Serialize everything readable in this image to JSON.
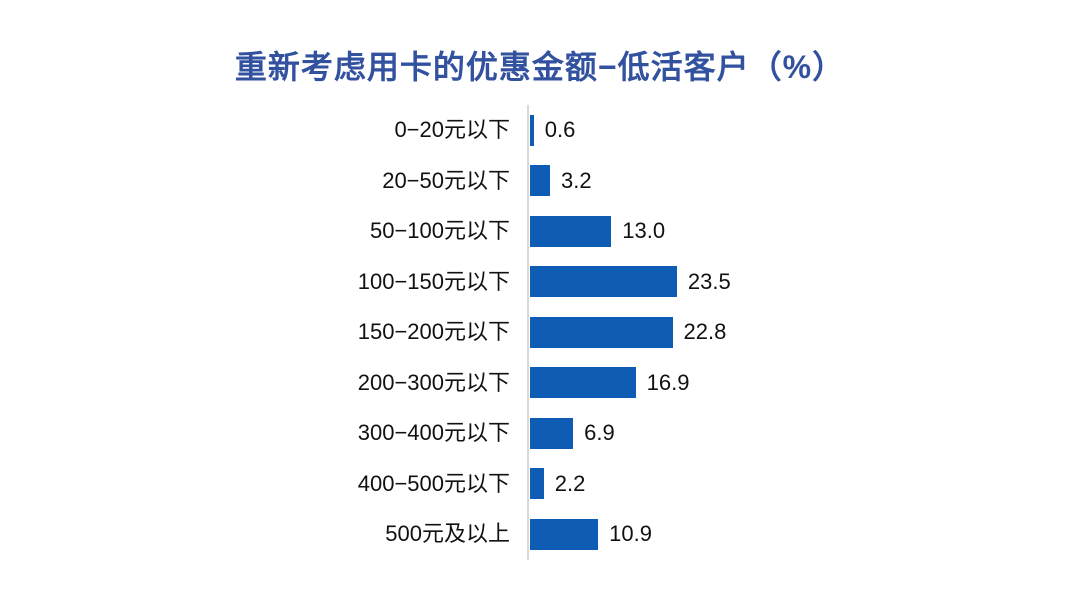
{
  "title": "重新考虑用卡的优惠金额−低活客户（%）",
  "chart_data": {
    "type": "bar",
    "orientation": "horizontal",
    "title": "重新考虑用卡的优惠金额−低活客户（%）",
    "categories": [
      "0−20元以下",
      "20−50元以下",
      "50−100元以下",
      "100−150元以下",
      "150−200元以下",
      "200−300元以下",
      "300−400元以下",
      "400−500元以下",
      "500元及以上"
    ],
    "values": [
      0.6,
      3.2,
      13.0,
      23.5,
      22.8,
      16.9,
      6.9,
      2.2,
      10.9
    ],
    "value_labels": [
      "0.6",
      "3.2",
      "13.0",
      "23.5",
      "22.8",
      "16.9",
      "6.9",
      "2.2",
      "10.9"
    ],
    "xlabel": "",
    "ylabel": "",
    "xlim": [
      0,
      25
    ],
    "grid": false,
    "legend": false,
    "data_labels_position": "outside-end"
  },
  "colors": {
    "bar": "#0F5CB5",
    "title": "#32519E",
    "axis_line": "#D9D9D9",
    "category_label": "#111111",
    "value_label": "#111111",
    "background": "#FFFFFF"
  }
}
